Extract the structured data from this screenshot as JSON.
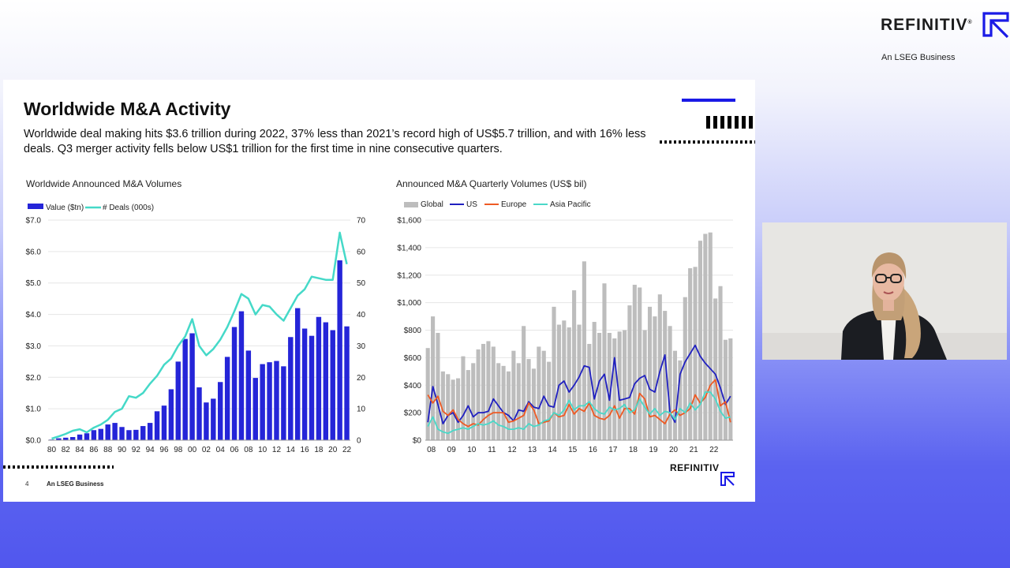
{
  "brand": {
    "name": "REFINITIV",
    "reg": "®",
    "tagline": "An LSEG Business"
  },
  "slide": {
    "title": "Worldwide M&A Activity",
    "description": "Worldwide deal making hits $3.6 trillion during 2022, 37% less than 2021’s record high of US$5.7 trillion, and with 16% less deals.  Q3 merger activity fells below US$1 trillion for the first time in nine consecutive quarters.",
    "page_number": "4",
    "footer_brand": "An LSEG Business",
    "footer_logo": "REFINITIV"
  },
  "colors": {
    "value_bar": "#2525d8",
    "deals_line": "#45d9c8",
    "global_bar": "#bdbdbd",
    "us_line": "#2020c0",
    "europe_line": "#ee5a24",
    "asia_line": "#4ad8c8",
    "accent": "#1a1ae6"
  },
  "chart_data": [
    {
      "type": "bar",
      "title": "Worldwide Announced M&A Volumes",
      "legend": [
        "Value ($tn)",
        "# Deals (000s)"
      ],
      "legend_position": "top-left",
      "x_tick_labels": [
        "80",
        "82",
        "84",
        "86",
        "88",
        "90",
        "92",
        "94",
        "96",
        "98",
        "00",
        "02",
        "04",
        "06",
        "08",
        "10",
        "12",
        "14",
        "16",
        "18",
        "20",
        "22"
      ],
      "years": [
        1980,
        1981,
        1982,
        1983,
        1984,
        1985,
        1986,
        1987,
        1988,
        1989,
        1990,
        1991,
        1992,
        1993,
        1994,
        1995,
        1996,
        1997,
        1998,
        1999,
        2000,
        2001,
        2002,
        2003,
        2004,
        2005,
        2006,
        2007,
        2008,
        2009,
        2010,
        2011,
        2012,
        2013,
        2014,
        2015,
        2016,
        2017,
        2018,
        2019,
        2020,
        2021,
        2022
      ],
      "left_axis": {
        "ticks": [
          "$0.0",
          "$1.0",
          "$2.0",
          "$3.0",
          "$4.0",
          "$5.0",
          "$6.0",
          "$7.0"
        ],
        "range": [
          0,
          7
        ]
      },
      "right_axis": {
        "ticks": [
          "0",
          "10",
          "20",
          "30",
          "40",
          "50",
          "60",
          "70"
        ],
        "range": [
          0,
          70
        ]
      },
      "series": [
        {
          "name": "Value ($tn)",
          "axis": "left",
          "type": "bar",
          "values": [
            0.02,
            0.06,
            0.08,
            0.1,
            0.18,
            0.22,
            0.32,
            0.36,
            0.5,
            0.55,
            0.42,
            0.32,
            0.33,
            0.45,
            0.55,
            0.92,
            1.1,
            1.62,
            2.5,
            3.22,
            3.4,
            1.68,
            1.2,
            1.32,
            1.85,
            2.65,
            3.6,
            4.1,
            2.85,
            1.98,
            2.42,
            2.48,
            2.52,
            2.35,
            3.28,
            4.2,
            3.55,
            3.32,
            3.92,
            3.75,
            3.5,
            5.72,
            3.62
          ]
        },
        {
          "name": "# Deals (000s)",
          "axis": "right",
          "type": "line",
          "values": [
            0.5,
            1.2,
            2,
            3,
            3.5,
            2.5,
            4,
            5,
            6.5,
            9,
            10,
            14,
            13.5,
            15,
            18,
            20.5,
            24,
            26,
            30,
            33,
            38.5,
            30,
            27,
            29,
            32,
            36,
            41,
            46.5,
            45,
            40,
            43,
            42.5,
            40,
            38,
            42,
            46,
            48,
            52,
            51.5,
            51,
            51,
            66,
            56
          ]
        }
      ]
    },
    {
      "type": "bar",
      "title": "Announced M&A Quarterly Volumes (US$ bil)",
      "legend": [
        "Global",
        "US",
        "Europe",
        "Asia Pacific"
      ],
      "legend_position": "top-left",
      "x_tick_labels": [
        "08",
        "09",
        "10",
        "11",
        "12",
        "13",
        "14",
        "15",
        "16",
        "17",
        "18",
        "19",
        "20",
        "21",
        "22"
      ],
      "y_axis": {
        "ticks": [
          "$0",
          "$200",
          "$400",
          "$600",
          "$800",
          "$1,000",
          "$1,200",
          "$1,400",
          "$1,600"
        ],
        "range": [
          0,
          1600
        ]
      },
      "series": [
        {
          "name": "Global",
          "type": "bar",
          "values": [
            670,
            900,
            780,
            500,
            480,
            440,
            450,
            610,
            510,
            560,
            660,
            700,
            720,
            680,
            560,
            540,
            500,
            650,
            560,
            830,
            590,
            520,
            680,
            650,
            570,
            970,
            840,
            870,
            820,
            1090,
            840,
            1300,
            700,
            860,
            780,
            1140,
            780,
            740,
            790,
            800,
            980,
            1130,
            1110,
            800,
            970,
            900,
            1060,
            940,
            830,
            650,
            580,
            1040,
            1250,
            1260,
            1450,
            1500,
            1510,
            1030,
            1120,
            730,
            740
          ]
        },
        {
          "name": "US",
          "type": "line",
          "values": [
            130,
            390,
            260,
            120,
            180,
            200,
            130,
            180,
            250,
            170,
            200,
            200,
            210,
            300,
            250,
            200,
            180,
            140,
            220,
            210,
            280,
            240,
            230,
            320,
            250,
            240,
            400,
            430,
            350,
            400,
            460,
            540,
            530,
            300,
            430,
            480,
            290,
            600,
            290,
            300,
            310,
            410,
            450,
            470,
            370,
            350,
            500,
            620,
            200,
            130,
            480,
            570,
            630,
            690,
            610,
            560,
            520,
            480,
            380,
            260,
            320
          ]
        },
        {
          "name": "Europe",
          "type": "line",
          "values": [
            330,
            270,
            320,
            210,
            180,
            220,
            150,
            120,
            100,
            120,
            110,
            150,
            180,
            200,
            200,
            200,
            130,
            140,
            160,
            180,
            270,
            220,
            120,
            130,
            140,
            200,
            170,
            180,
            260,
            190,
            230,
            210,
            270,
            180,
            160,
            150,
            180,
            250,
            160,
            230,
            230,
            190,
            340,
            300,
            170,
            180,
            150,
            120,
            190,
            220,
            180,
            200,
            230,
            330,
            270,
            310,
            400,
            440,
            250,
            280,
            130
          ]
        },
        {
          "name": "Asia Pacific",
          "type": "line",
          "values": [
            100,
            170,
            80,
            60,
            50,
            70,
            80,
            90,
            80,
            100,
            120,
            110,
            120,
            140,
            110,
            100,
            80,
            80,
            90,
            80,
            120,
            100,
            110,
            140,
            150,
            200,
            180,
            220,
            290,
            220,
            250,
            250,
            280,
            230,
            200,
            190,
            240,
            220,
            230,
            260,
            200,
            220,
            300,
            240,
            190,
            230,
            180,
            210,
            200,
            150,
            230,
            200,
            270,
            220,
            260,
            350,
            350,
            300,
            210,
            160,
            170
          ]
        }
      ]
    }
  ]
}
